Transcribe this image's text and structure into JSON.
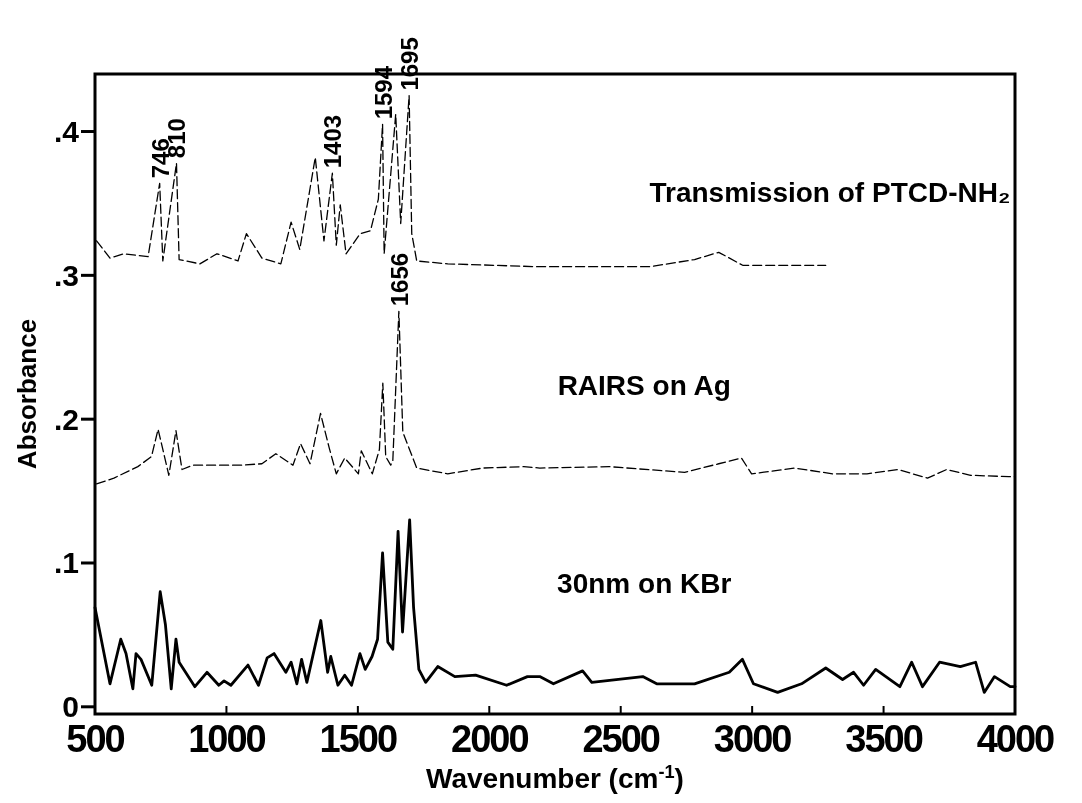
{
  "chart_data": {
    "type": "line",
    "xlabel": "Wavenumber (cm$^{-1}$)",
    "ylabel": "Absorbance",
    "xlim": [
      500,
      4000
    ],
    "xticks": [
      500,
      1000,
      1500,
      2000,
      2500,
      3000,
      3500,
      4000
    ],
    "ylim": [
      -0.005,
      0.44
    ],
    "yticks": [
      0,
      {
        "value": 0.1,
        "label": ".1"
      },
      {
        "value": 0.2,
        "label": ".2"
      },
      {
        "value": 0.3,
        "label": ".3"
      },
      {
        "value": 0.4,
        "label": ".4"
      }
    ],
    "grid": false,
    "marker": "none",
    "series": [
      {
        "name": "Transmission of PTCD-NH₂",
        "color": "#000000",
        "line_style": "dashed",
        "x": [
          506,
          557,
          610,
          702,
          746,
          758,
          810,
          820,
          899,
          964,
          1044,
          1076,
          1135,
          1207,
          1246,
          1279,
          1338,
          1371,
          1403,
          1418,
          1433,
          1455,
          1509,
          1548,
          1578,
          1594,
          1600,
          1644,
          1663,
          1695,
          1705,
          1724,
          1842,
          2184,
          2610,
          2781,
          2873,
          2964,
          3280
        ],
        "values": [
          0.324,
          0.312,
          0.315,
          0.313,
          0.364,
          0.31,
          0.378,
          0.311,
          0.308,
          0.315,
          0.31,
          0.329,
          0.312,
          0.308,
          0.337,
          0.318,
          0.382,
          0.324,
          0.371,
          0.321,
          0.349,
          0.315,
          0.329,
          0.331,
          0.353,
          0.405,
          0.315,
          0.412,
          0.336,
          0.425,
          0.329,
          0.31,
          0.308,
          0.306,
          0.306,
          0.311,
          0.316,
          0.307,
          0.307
        ]
      },
      {
        "name": "RAIRS on Ag",
        "color": "#000000",
        "line_style": "dashed",
        "x": [
          506,
          572,
          663,
          715,
          740,
          781,
          808,
          831,
          873,
          1055,
          1135,
          1188,
          1253,
          1282,
          1318,
          1358,
          1391,
          1418,
          1450,
          1502,
          1513,
          1555,
          1582,
          1595,
          1606,
          1625,
          1633,
          1656,
          1671,
          1724,
          1842,
          1975,
          2131,
          2192,
          2455,
          2743,
          2873,
          2959,
          2998,
          3162,
          3306,
          3437,
          3555,
          3667,
          3740,
          3831,
          3976,
          4000
        ],
        "values": [
          0.155,
          0.159,
          0.167,
          0.174,
          0.193,
          0.161,
          0.192,
          0.165,
          0.168,
          0.168,
          0.169,
          0.176,
          0.168,
          0.183,
          0.169,
          0.204,
          0.18,
          0.162,
          0.173,
          0.162,
          0.178,
          0.162,
          0.179,
          0.225,
          0.174,
          0.168,
          0.171,
          0.275,
          0.191,
          0.166,
          0.162,
          0.166,
          0.167,
          0.166,
          0.167,
          0.163,
          0.169,
          0.173,
          0.162,
          0.166,
          0.162,
          0.162,
          0.165,
          0.159,
          0.165,
          0.161,
          0.16,
          0.16
        ]
      },
      {
        "name": "30nm on KBr",
        "color": "#000000",
        "line_style": "solid",
        "x": [
          500,
          557,
          598,
          618,
          644,
          656,
          675,
          716,
          748,
          768,
          790,
          808,
          820,
          880,
          926,
          971,
          991,
          1017,
          1082,
          1122,
          1155,
          1181,
          1226,
          1246,
          1268,
          1286,
          1306,
          1359,
          1385,
          1397,
          1424,
          1450,
          1476,
          1508,
          1528,
          1554,
          1575,
          1594,
          1614,
          1633,
          1653,
          1670,
          1697,
          1712,
          1732,
          1758,
          1804,
          1869,
          1948,
          2066,
          2145,
          2192,
          2244,
          2355,
          2390,
          2584,
          2637,
          2781,
          2913,
          2963,
          3005,
          3097,
          3188,
          3280,
          3344,
          3386,
          3424,
          3470,
          3562,
          3607,
          3648,
          3713,
          3792,
          3850,
          3883,
          3922,
          3982,
          4000
        ],
        "values": [
          0.069,
          0.016,
          0.047,
          0.037,
          0.0125,
          0.037,
          0.033,
          0.015,
          0.08,
          0.057,
          0.0125,
          0.047,
          0.031,
          0.014,
          0.024,
          0.015,
          0.018,
          0.015,
          0.029,
          0.015,
          0.034,
          0.037,
          0.024,
          0.031,
          0.016,
          0.033,
          0.017,
          0.06,
          0.024,
          0.035,
          0.015,
          0.022,
          0.015,
          0.037,
          0.026,
          0.035,
          0.047,
          0.107,
          0.045,
          0.04,
          0.122,
          0.052,
          0.13,
          0.069,
          0.026,
          0.017,
          0.028,
          0.021,
          0.022,
          0.015,
          0.021,
          0.021,
          0.016,
          0.025,
          0.017,
          0.021,
          0.016,
          0.016,
          0.024,
          0.033,
          0.016,
          0.01,
          0.016,
          0.027,
          0.019,
          0.024,
          0.015,
          0.026,
          0.014,
          0.031,
          0.014,
          0.031,
          0.028,
          0.031,
          0.01,
          0.021,
          0.014,
          0.014
        ]
      }
    ],
    "annotations": [
      {
        "text": "746",
        "x": 746,
        "y": 0.364
      },
      {
        "text": "810",
        "x": 810,
        "y": 0.378
      },
      {
        "text": "1403",
        "x": 1403,
        "y": 0.371
      },
      {
        "text": "1594",
        "x": 1594,
        "y": 0.405
      },
      {
        "text": "1695",
        "x": 1695,
        "y": 0.425
      },
      {
        "text": "1656",
        "x": 1656,
        "y": 0.275
      }
    ]
  }
}
